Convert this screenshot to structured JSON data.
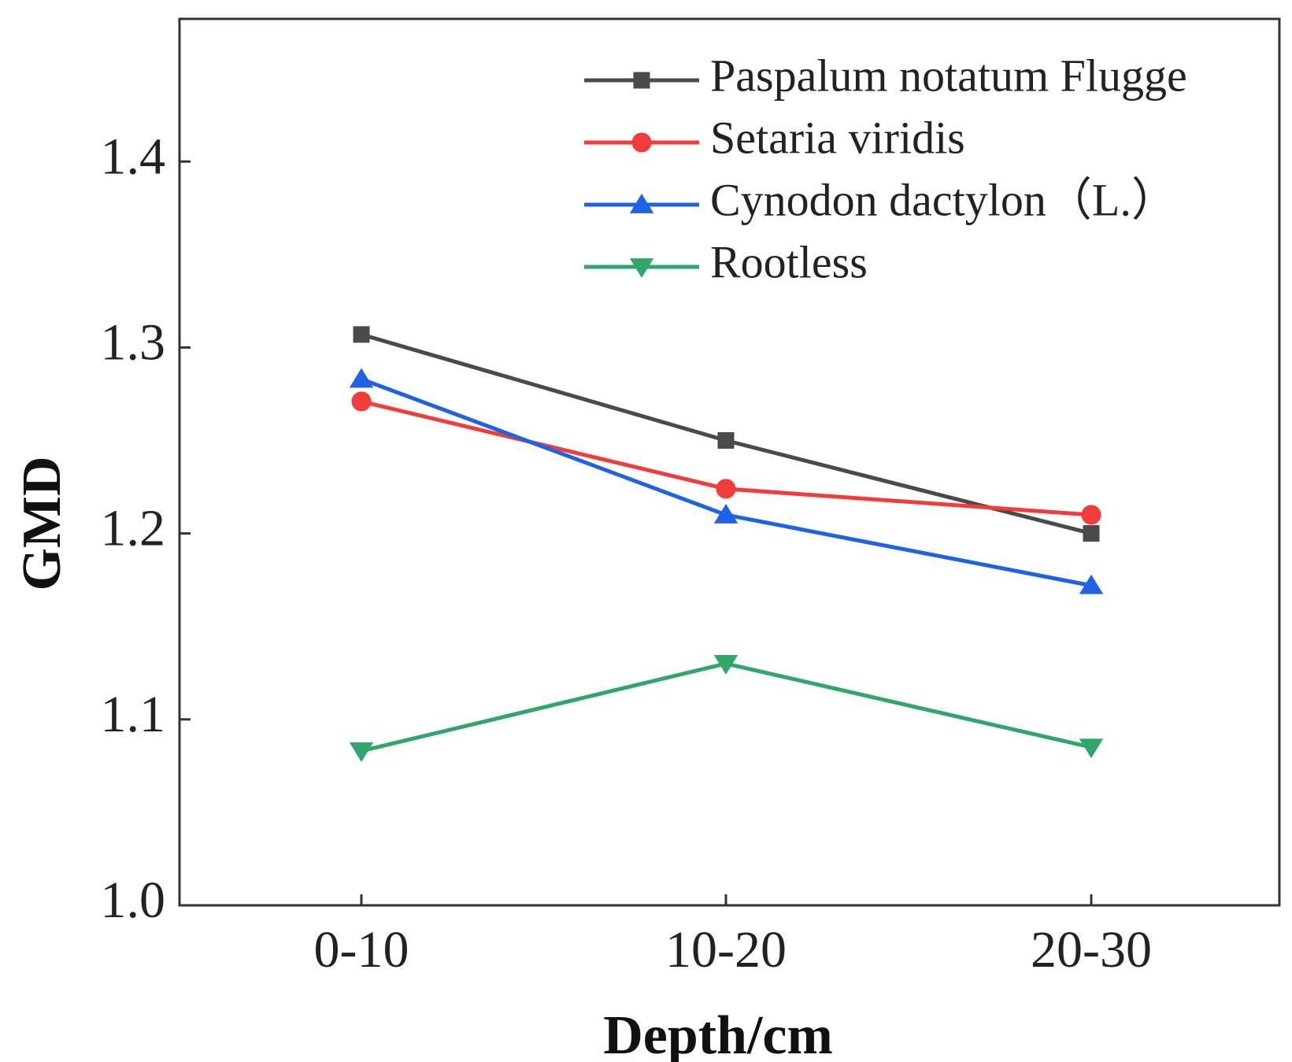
{
  "chart_data": {
    "type": "line",
    "title": "",
    "xlabel": "Depth/cm",
    "ylabel": "GMD",
    "categories": [
      "0-10",
      "10-20",
      "20-30"
    ],
    "ylim": [
      1.0,
      1.48
    ],
    "yticks": [
      1.0,
      1.1,
      1.2,
      1.3,
      1.4
    ],
    "ytick_labels": [
      "1.0",
      "1.1",
      "1.2",
      "1.3",
      "1.4"
    ],
    "grid": false,
    "legend_position": "top-right",
    "series": [
      {
        "name": "Paspalum notatum Flugge",
        "values": [
          1.307,
          1.25,
          1.2
        ],
        "color": "#4a4a4a",
        "marker": "square"
      },
      {
        "name": "Setaria viridis",
        "values": [
          1.271,
          1.224,
          1.21
        ],
        "color": "#f23b3b",
        "marker": "circle"
      },
      {
        "name": "Cynodon dactylon（L.）",
        "values": [
          1.283,
          1.21,
          1.172
        ],
        "color": "#1e63e6",
        "marker": "triangle-up"
      },
      {
        "name": "Rootless",
        "values": [
          1.083,
          1.13,
          1.085
        ],
        "color": "#2fa66a",
        "marker": "triangle-down"
      }
    ]
  }
}
